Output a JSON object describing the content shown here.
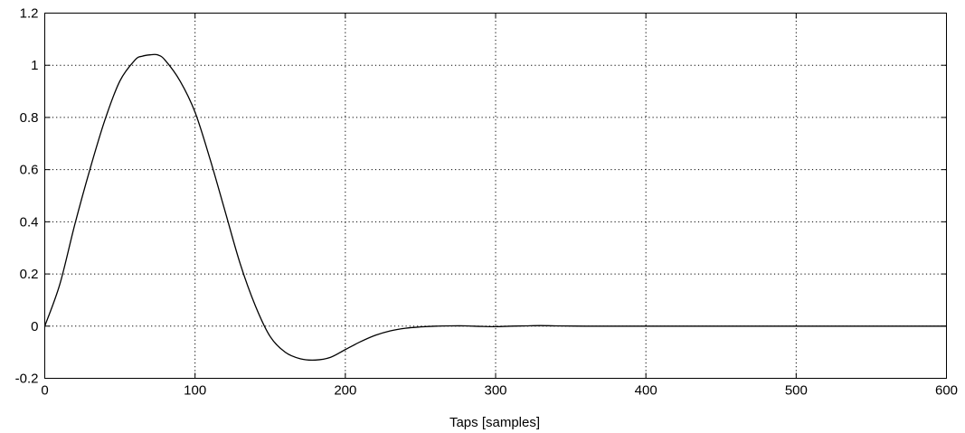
{
  "chart_data": {
    "type": "line",
    "xlabel": "Taps [samples]",
    "ylabel": "",
    "title": "",
    "xlim": [
      0,
      600
    ],
    "ylim": [
      -0.2,
      1.2
    ],
    "xticks": [
      0,
      100,
      200,
      300,
      400,
      500,
      600
    ],
    "yticks": [
      -0.2,
      0,
      0.2,
      0.4,
      0.6,
      0.8,
      1,
      1.2
    ],
    "xtick_labels": [
      "0",
      "100",
      "200",
      "300",
      "400",
      "500",
      "600"
    ],
    "ytick_labels": [
      "-0.2",
      "0",
      "0.2",
      "0.4",
      "0.6",
      "0.8",
      "1",
      "1.2"
    ],
    "grid": true,
    "series": [
      {
        "color": "#000000",
        "x": [
          0,
          10,
          20,
          30,
          40,
          50,
          60,
          65,
          70,
          75,
          80,
          90,
          100,
          110,
          120,
          130,
          140,
          150,
          160,
          170,
          180,
          190,
          200,
          210,
          220,
          230,
          240,
          250,
          260,
          270,
          280,
          290,
          300,
          310,
          320,
          330,
          340,
          360,
          400,
          450,
          500,
          550,
          600
        ],
        "y": [
          0,
          0.16,
          0.39,
          0.6,
          0.79,
          0.94,
          1.02,
          1.035,
          1.04,
          1.04,
          1.02,
          0.94,
          0.82,
          0.64,
          0.44,
          0.24,
          0.08,
          -0.04,
          -0.1,
          -0.125,
          -0.13,
          -0.12,
          -0.09,
          -0.06,
          -0.035,
          -0.018,
          -0.008,
          -0.003,
          0.0,
          0.001,
          0.001,
          -0.001,
          -0.002,
          0.0,
          0.001,
          0.002,
          0.001,
          0.0,
          0.0,
          0.0,
          0.0,
          0.0,
          0.0
        ]
      }
    ]
  }
}
